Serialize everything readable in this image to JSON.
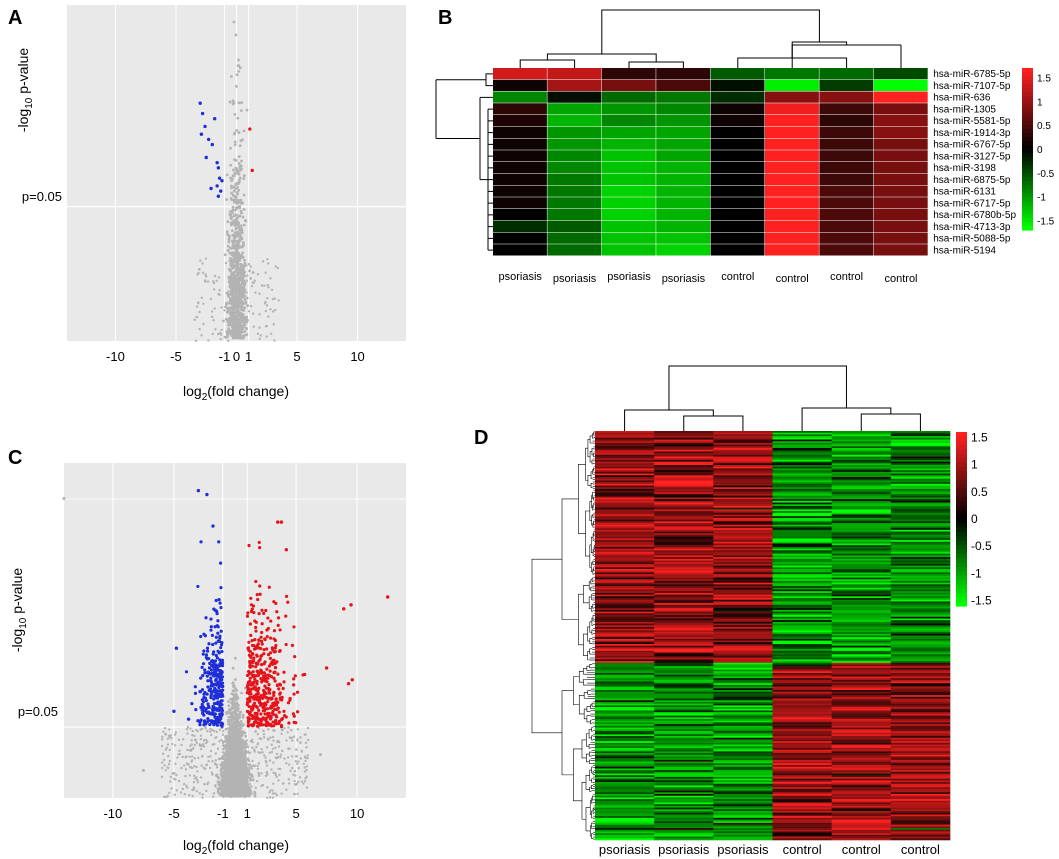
{
  "figure": {
    "panel_letters": [
      "A",
      "B",
      "C",
      "D"
    ],
    "colors": {
      "plot_bg": "#e9e9e9",
      "grid": "#ffffff",
      "point_grey": "#b3b3b3",
      "point_blue": "#1f2fd8",
      "point_red": "#e5141a",
      "heat_low": "#00ff00",
      "heat_mid": "#000000",
      "heat_high": "#ff2020"
    }
  },
  "chart_data": [
    {
      "panel": "A",
      "type": "scatter",
      "title": "",
      "xlabel_main": "log",
      "xlabel_sub": "2",
      "xlabel_rest": "(fold change)",
      "ylabel_pre": "-log",
      "ylabel_sub": "10",
      "ylabel_rest": " p-value",
      "xlim": [
        -14,
        14
      ],
      "ylim": [
        0,
        6.5
      ],
      "x_ticks": [
        -10,
        -5,
        -1,
        0,
        1,
        5,
        10
      ],
      "x_tick_labels": [
        "-10",
        "-5",
        "-1",
        "0",
        "1",
        "5",
        "10"
      ],
      "y_annotation": "p=0.05",
      "threshold_y": 2.6,
      "down_regulated": [
        [
          -3.0,
          4.6
        ],
        [
          -2.8,
          4.4
        ],
        [
          -2.6,
          4.15
        ],
        [
          -1.8,
          4.3
        ],
        [
          -2.9,
          4.0
        ],
        [
          -2.3,
          3.9
        ],
        [
          -2.0,
          3.8
        ],
        [
          -2.5,
          3.55
        ],
        [
          -1.6,
          3.45
        ],
        [
          -1.5,
          3.35
        ],
        [
          -1.4,
          3.15
        ],
        [
          -1.6,
          3.0
        ],
        [
          -2.1,
          2.95
        ],
        [
          -1.3,
          2.9
        ],
        [
          -1.2,
          3.1
        ],
        [
          -1.5,
          2.8
        ]
      ],
      "up_regulated": [
        [
          1.1,
          4.1
        ],
        [
          1.3,
          3.3
        ]
      ],
      "grey_count": 900,
      "grey_spread": 0.8
    },
    {
      "panel": "C",
      "type": "scatter",
      "title": "",
      "xlabel_main": "log",
      "xlabel_sub": "2",
      "xlabel_rest": "(fold change)",
      "ylabel_pre": "-log",
      "ylabel_sub": "10",
      "ylabel_rest": " p-value",
      "xlim": [
        -14,
        14
      ],
      "ylim": [
        0,
        8.5
      ],
      "x_ticks": [
        -10,
        -5,
        -1,
        1,
        5,
        10
      ],
      "x_tick_labels": [
        "-10",
        "-5",
        "-1",
        "1",
        "5",
        "10"
      ],
      "y_annotation": "p=0.05",
      "threshold_y": 1.8,
      "grey_count": 3200,
      "grey_spread": 1.0,
      "blue_count": 300,
      "red_count": 420,
      "red_outliers": [
        [
          12.5,
          5.1
        ],
        [
          9.5,
          4.9
        ],
        [
          8.9,
          4.8
        ],
        [
          3.5,
          7.0
        ],
        [
          3.8,
          7.0
        ],
        [
          9.3,
          2.9
        ],
        [
          9.6,
          3.0
        ],
        [
          7.5,
          3.3
        ],
        [
          4.2,
          6.3
        ]
      ],
      "blue_outliers": [
        [
          -3.0,
          7.8
        ],
        [
          -2.3,
          7.7
        ],
        [
          -1.8,
          6.9
        ],
        [
          -4.8,
          3.8
        ],
        [
          -5.0,
          2.2
        ],
        [
          -3.8,
          2.0
        ]
      ],
      "grey_outliers": [
        [
          -14,
          7.6
        ],
        [
          -7.5,
          0.7
        ],
        [
          7,
          1.1
        ]
      ]
    },
    {
      "panel": "B",
      "type": "heatmap",
      "columns": [
        "psoriasis",
        "psoriasis",
        "psoriasis",
        "psoriasis",
        "control",
        "control",
        "control",
        "control"
      ],
      "rows": [
        "hsa-miR-6785-5p",
        "hsa-miR-7107-5p",
        "hsa-miR-636",
        "hsa-miR-1305",
        "hsa-miR-5581-5p",
        "hsa-miR-1914-3p",
        "hsa-miR-6767-5p",
        "hsa-miR-3127-5p",
        "hsa-miR-3198",
        "hsa-miR-6875-5p",
        "hsa-miR-6131",
        "hsa-miR-6717-5p",
        "hsa-miR-6780b-5p",
        "hsa-miR-4713-3p",
        "hsa-miR-5088-5p",
        "hsa-miR-5194"
      ],
      "values": [
        [
          1.4,
          1.3,
          0.3,
          0.3,
          -0.6,
          -0.8,
          -0.7,
          -0.5
        ],
        [
          0.1,
          1.1,
          0.8,
          0.5,
          -0.1,
          -1.6,
          -0.4,
          -1.7
        ],
        [
          -0.9,
          -0.1,
          -0.7,
          -0.8,
          -0.3,
          0.9,
          0.9,
          1.7
        ],
        [
          0.3,
          -1.1,
          -1.0,
          -0.9,
          0.1,
          1.6,
          0.4,
          0.8
        ],
        [
          0.2,
          -1.2,
          -0.9,
          -1.0,
          0.1,
          1.7,
          0.3,
          0.9
        ],
        [
          0.1,
          -1.0,
          -1.1,
          -1.1,
          0.0,
          1.8,
          0.4,
          0.9
        ],
        [
          0.1,
          -1.0,
          -1.2,
          -1.1,
          0.0,
          1.7,
          0.4,
          0.8
        ],
        [
          0.1,
          -0.9,
          -1.3,
          -1.1,
          0.0,
          1.7,
          0.4,
          0.8
        ],
        [
          0.1,
          -0.9,
          -1.3,
          -1.2,
          0.0,
          1.7,
          0.4,
          0.8
        ],
        [
          0.1,
          -0.8,
          -1.3,
          -1.2,
          0.0,
          1.7,
          0.4,
          0.8
        ],
        [
          0.1,
          -0.8,
          -1.4,
          -1.2,
          0.0,
          1.7,
          0.5,
          0.8
        ],
        [
          0.1,
          -0.8,
          -1.4,
          -1.2,
          0.0,
          1.7,
          0.5,
          0.8
        ],
        [
          0.0,
          -0.8,
          -1.4,
          -1.2,
          0.0,
          1.7,
          0.5,
          0.8
        ],
        [
          -0.3,
          -0.6,
          -1.3,
          -1.2,
          0.0,
          1.7,
          0.5,
          0.8
        ],
        [
          0.0,
          -0.7,
          -1.3,
          -1.3,
          0.0,
          1.7,
          0.5,
          0.8
        ],
        [
          0.0,
          -0.7,
          -1.3,
          -1.4,
          0.0,
          1.7,
          0.5,
          0.8
        ]
      ],
      "color_scale": {
        "range": [
          -1.7,
          1.7
        ],
        "ticks": [
          1.5,
          1,
          0.5,
          0,
          -0.5,
          -1,
          -1.5
        ],
        "tick_labels": [
          "1.5",
          "1",
          "0.5",
          "0",
          "-0.5",
          "-1",
          "-1.5"
        ]
      }
    },
    {
      "panel": "D",
      "type": "heatmap",
      "columns": [
        "psoriasis",
        "psoriasis",
        "psoriasis",
        "control",
        "control",
        "control"
      ],
      "row_count": 240,
      "up_cluster_rows": 136,
      "color_scale": {
        "range": [
          -1.6,
          1.6
        ],
        "ticks": [
          1.5,
          1,
          0.5,
          0,
          -0.5,
          -1,
          -1.5
        ],
        "tick_labels": [
          "1.5",
          "1",
          "0.5",
          "0",
          "-0.5",
          "-1",
          "-1.5"
        ]
      }
    }
  ]
}
